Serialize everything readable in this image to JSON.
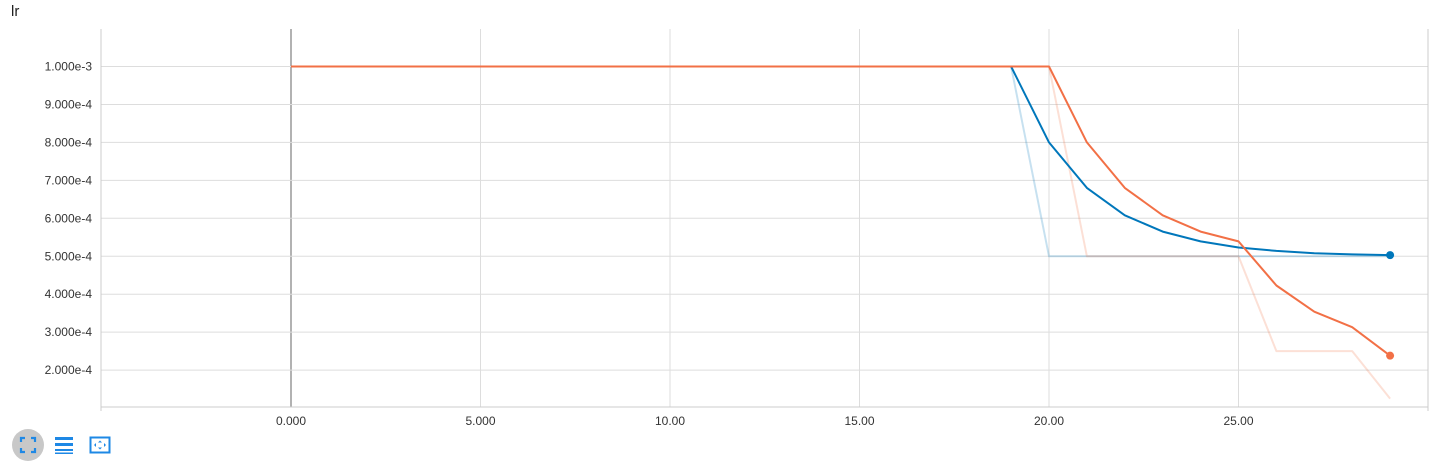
{
  "header": {
    "title": "lr"
  },
  "colors": {
    "series_blue": "#0077bb",
    "series_orange": "#f27046",
    "grid": "#dddddd",
    "axis": "#cccccc",
    "zero_line": "#999999",
    "toolbar_icon": "#1e88e5"
  },
  "toolbar": {
    "buttons": [
      {
        "icon": "fullscreen-icon"
      },
      {
        "icon": "list-icon"
      },
      {
        "icon": "fit-domain-icon"
      }
    ]
  },
  "chart_data": {
    "type": "line",
    "title": "lr",
    "xlabel": "",
    "ylabel": "",
    "xlim": [
      -5,
      30
    ],
    "ylim": [
      0.0001,
      0.00109
    ],
    "x_ticks": [
      0,
      5,
      10,
      15,
      20,
      25
    ],
    "x_tick_labels": [
      "0.000",
      "5.000",
      "10.00",
      "15.00",
      "20.00",
      "25.00"
    ],
    "y_ticks": [
      0.0002,
      0.0003,
      0.0004,
      0.0005,
      0.0006,
      0.0007,
      0.0008,
      0.0009,
      0.001
    ],
    "y_tick_labels": [
      "2.000e-4",
      "3.000e-4",
      "4.000e-4",
      "5.000e-4",
      "6.000e-4",
      "7.000e-4",
      "8.000e-4",
      "9.000e-4",
      "1.000e-3"
    ],
    "grid": true,
    "legend": "none",
    "series": [
      {
        "color": "#0077bb",
        "role": "raw",
        "x": [
          0,
          19,
          20,
          21,
          22,
          23,
          24,
          25,
          26,
          27,
          28,
          29
        ],
        "y": [
          0.001,
          0.001,
          0.0005,
          0.0005,
          0.0005,
          0.0005,
          0.0005,
          0.0005,
          0.0005,
          0.0005,
          0.0005,
          0.0005
        ]
      },
      {
        "color": "#0077bb",
        "role": "smoothed",
        "x": [
          0,
          19,
          20,
          21,
          22,
          23,
          24,
          25,
          26,
          27,
          28,
          29
        ],
        "y": [
          0.001,
          0.001,
          0.0008,
          0.00068,
          0.000608,
          0.000565,
          0.000539,
          0.000523,
          0.000514,
          0.000508,
          0.000505,
          0.000503
        ]
      },
      {
        "color": "#f27046",
        "role": "raw",
        "x": [
          0,
          20,
          21,
          22,
          23,
          24,
          25,
          26,
          27,
          28,
          29
        ],
        "y": [
          0.001,
          0.001,
          0.0005,
          0.0005,
          0.0005,
          0.0005,
          0.0005,
          0.00025,
          0.00025,
          0.00025,
          0.000125
        ]
      },
      {
        "color": "#f27046",
        "role": "smoothed",
        "x": [
          0,
          20,
          21,
          22,
          23,
          24,
          25,
          26,
          27,
          28,
          29
        ],
        "y": [
          0.001,
          0.001,
          0.0008,
          0.00068,
          0.000608,
          0.000565,
          0.000539,
          0.000423,
          0.000354,
          0.000313,
          0.000238
        ]
      }
    ]
  }
}
